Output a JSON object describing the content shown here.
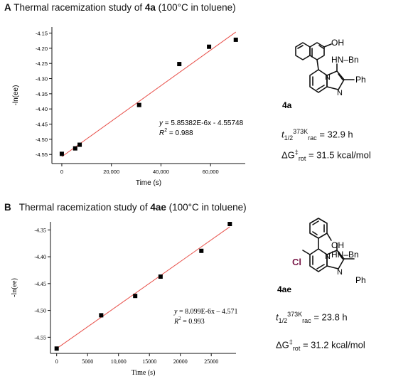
{
  "panel_a": {
    "letter": "A",
    "title_pre": "Thermal racemization study of ",
    "title_bold": "4a",
    "title_post": " (100°C in toluene)",
    "compound_label": "4a",
    "substituents": {
      "oh": "OH",
      "nh": "HN–Bn",
      "ph": "Ph",
      "n_ring": "N",
      "n_bridge": "N"
    },
    "half_life": {
      "symbol": "t",
      "sub": "1/2",
      "sup": "373K",
      "sub2": "rac",
      "value": "= 32.9 h"
    },
    "free_energy": {
      "symbol": "ΔG",
      "sup": "‡",
      "sub": "rot",
      "value": "= 31.5 kcal/mol"
    }
  },
  "panel_b": {
    "letter": "B",
    "title_pre": "Thermal racemization study of ",
    "title_bold": "4ae",
    "title_post": " (100°C in toluene)",
    "compound_label": "4ae",
    "substituents": {
      "oh": "OH",
      "nh": "HN–Bn",
      "ph": "Ph",
      "cl": "Cl",
      "n_ring": "N",
      "n_bridge": "N"
    },
    "half_life": {
      "symbol": "t",
      "sub": "1/2",
      "sup": "373K",
      "sub2": "rac",
      "value": "= 23.8 h"
    },
    "free_energy": {
      "symbol": "ΔG",
      "sup": "‡",
      "sub": "rot",
      "value": "= 31.2 kcal/mol"
    }
  },
  "colors": {
    "fit_line": "#e8504a",
    "points": "#000000",
    "chlorine": "#7a1a4a"
  },
  "chart_data": [
    {
      "type": "scatter",
      "xlabel": "Time (s)",
      "ylabel": "-ln(ee)",
      "xlim": [
        -4000,
        74000
      ],
      "ylim": [
        -4.58,
        -4.13
      ],
      "xticks": [
        0,
        20000,
        40000,
        60000
      ],
      "xtick_labels": [
        "0",
        "20,000",
        "40,000",
        "60,000"
      ],
      "yticks": [
        -4.55,
        -4.5,
        -4.45,
        -4.4,
        -4.35,
        -4.3,
        -4.25,
        -4.2,
        -4.15
      ],
      "ytick_labels": [
        "-4.55",
        "-4.50",
        "-4.45",
        "-4.40",
        "-4.35",
        "-4.30",
        "-4.25",
        "-4.20",
        "-4.15"
      ],
      "x": [
        0,
        5400,
        7200,
        31200,
        47400,
        59400,
        70200
      ],
      "y": [
        -4.548,
        -4.53,
        -4.518,
        -4.387,
        -4.252,
        -4.195,
        -4.172
      ],
      "fit": {
        "slope": 5.85382e-06,
        "intercept": -4.55748,
        "x_range": [
          0,
          70200
        ]
      },
      "equation": {
        "lhs": "y",
        "rhs": " =  5.85382E-6x - 4.55748"
      },
      "r2": {
        "label": "R",
        "sup": "2",
        "value": " = 0.988"
      },
      "grid": false,
      "legend": "none"
    },
    {
      "type": "scatter",
      "xlabel": "Time (s)",
      "ylabel": "-ln(ee)",
      "xlim": [
        -1000,
        29000
      ],
      "ylim": [
        -4.58,
        -4.335
      ],
      "xticks": [
        0,
        5000,
        10000,
        15000,
        20000,
        25000
      ],
      "xtick_labels": [
        "0",
        "5000",
        "10,000",
        "15000",
        "20000",
        "25000"
      ],
      "yticks": [
        -4.55,
        -4.5,
        -4.45,
        -4.4,
        -4.35
      ],
      "ytick_labels": [
        "-4.55",
        "-4.50",
        "-4.45",
        "-4.40",
        "-4.35"
      ],
      "x": [
        0,
        7200,
        12700,
        16800,
        23400,
        28000
      ],
      "y": [
        -4.571,
        -4.509,
        -4.473,
        -4.437,
        -4.389,
        -4.339
      ],
      "fit": {
        "slope": 8.099e-06,
        "intercept": -4.571,
        "x_range": [
          0,
          28000
        ]
      },
      "equation": {
        "lhs": "y",
        "rhs": " = 8.099E-6x – 4.571"
      },
      "r2": {
        "label": "R",
        "sup": "2",
        "value": " = 0.993"
      },
      "grid": false,
      "legend": "none"
    }
  ]
}
